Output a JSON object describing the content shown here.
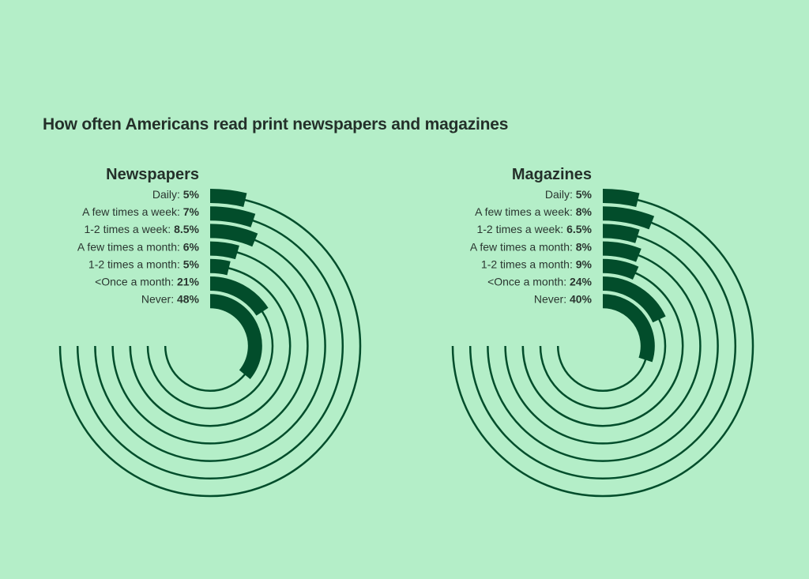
{
  "title": "How often Americans read print newspapers and magazines",
  "colors": {
    "background": "#b4eec8",
    "bar": "#024d2b",
    "track": "#024d2b"
  },
  "chart_data": [
    {
      "type": "bar",
      "layout": "radial",
      "title": "Newspapers",
      "unit": "%",
      "categories": [
        "Daily",
        "A few times a week",
        "1-2 times a week",
        "A few times a month",
        "1-2 times a month",
        "<Once a month",
        "Never"
      ],
      "values": [
        5,
        7,
        8.5,
        6,
        5,
        21,
        48
      ],
      "display_values": [
        "5%",
        "7%",
        "8.5%",
        "6%",
        "5%",
        "21%",
        "48%"
      ]
    },
    {
      "type": "bar",
      "layout": "radial",
      "title": "Magazines",
      "unit": "%",
      "categories": [
        "Daily",
        "A few times a week",
        "1-2 times a week",
        "A few times a month",
        "1-2 times a month",
        "<Once a month",
        "Never"
      ],
      "values": [
        5,
        8,
        6.5,
        8,
        9,
        24,
        40
      ],
      "display_values": [
        "5%",
        "8%",
        "6.5%",
        "8%",
        "9%",
        "24%",
        "40%"
      ]
    }
  ]
}
